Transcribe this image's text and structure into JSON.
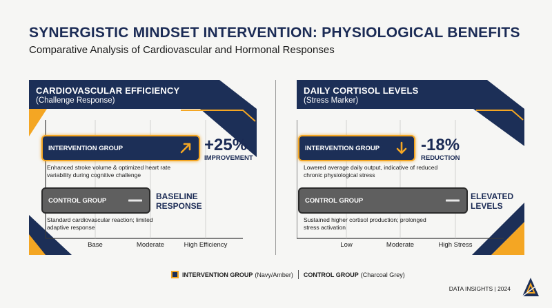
{
  "title": "SYNERGISTIC MINDSET INTERVENTION: PHYSIOLOGICAL BENEFITS",
  "subtitle": "Comparative Analysis of Cardiovascular and Hormonal Responses",
  "colors": {
    "navy": "#1c2f57",
    "amber": "#f4a623",
    "charcoal": "#5f5f5f"
  },
  "chart_data": [
    {
      "type": "bar",
      "title": "CARDIOVASCULAR EFFICIENCY",
      "subtitle": "(Challenge Response)",
      "x_ticks": [
        "Base",
        "Moderate",
        "High Efficiency"
      ],
      "series": [
        {
          "name": "INTERVENTION GROUP",
          "level": "High Efficiency",
          "icon": "arrow-up-right-icon",
          "value": "+25%",
          "value_caption": "IMPROVEMENT",
          "description": "Enhanced stroke volume & optimized heart rate variability during cognitive challenge"
        },
        {
          "name": "CONTROL GROUP",
          "level": "Moderate",
          "icon": "dash-icon",
          "status": "BASELINE RESPONSE",
          "description": "Standard cardiovascular reaction; limited adaptive response"
        }
      ]
    },
    {
      "type": "bar",
      "title": "DAILY CORTISOL LEVELS",
      "subtitle": "(Stress Marker)",
      "x_ticks": [
        "Low",
        "Moderate",
        "High Stress"
      ],
      "series": [
        {
          "name": "INTERVENTION GROUP",
          "level": "Moderate",
          "icon": "arrow-down-icon",
          "value": "-18%",
          "value_caption": "REDUCTION",
          "description": "Lowered average daily output, indicative of reduced chronic physiological stress"
        },
        {
          "name": "CONTROL GROUP",
          "level": "High Stress",
          "icon": "dash-icon",
          "status": "ELEVATED LEVELS",
          "description": "Sustained higher cortisol production; prolonged stress activation"
        }
      ]
    }
  ],
  "legend": {
    "intervention_label": "INTERVENTION GROUP",
    "intervention_note": "(Navy/Amber)",
    "control_label": "CONTROL GROUP",
    "control_note": "(Charcoal Grey)"
  },
  "footer": "DATA INSIGHTS | 2024"
}
